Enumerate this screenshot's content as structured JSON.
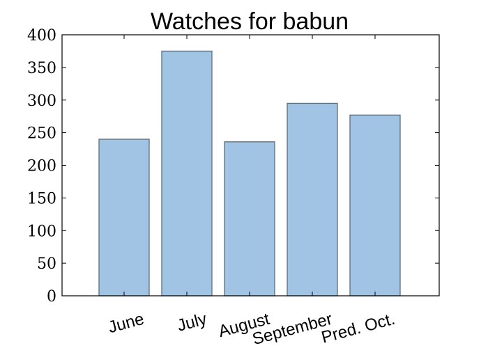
{
  "chart_data": {
    "type": "bar",
    "title": "Watches for babun",
    "xlabel": "",
    "ylabel": "",
    "categories": [
      "June",
      "July",
      "August",
      "September",
      "Pred. Oct."
    ],
    "values": [
      240,
      375,
      236,
      295,
      277
    ],
    "ylim": [
      0,
      400
    ],
    "yticks": [
      0,
      50,
      100,
      150,
      200,
      250,
      300,
      350,
      400
    ],
    "grid": false,
    "legend": "none",
    "colors": {
      "bar_fill": "#a1c3e4",
      "bar_stroke": "#5b6e7e",
      "axes": "#000000"
    }
  }
}
